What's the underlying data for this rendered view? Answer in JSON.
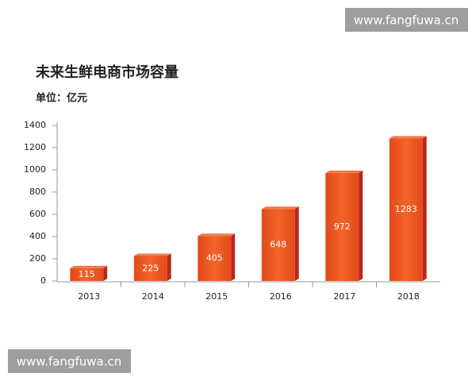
{
  "watermarks": [
    "www.fangfuwa.cn",
    "www.fangfuwa.cn"
  ],
  "chart_data": {
    "type": "bar",
    "title": "未来生鲜电商市场容量",
    "subtitle": "单位：亿元",
    "categories": [
      "2013",
      "2014",
      "2015",
      "2016",
      "2017",
      "2018"
    ],
    "values": [
      115,
      225,
      405,
      648,
      972,
      1283
    ],
    "color": "#e9531f",
    "ylim": [
      0,
      1400
    ],
    "yticks": [
      0,
      200,
      400,
      600,
      800,
      1000,
      1200,
      1400
    ],
    "grid": false
  }
}
